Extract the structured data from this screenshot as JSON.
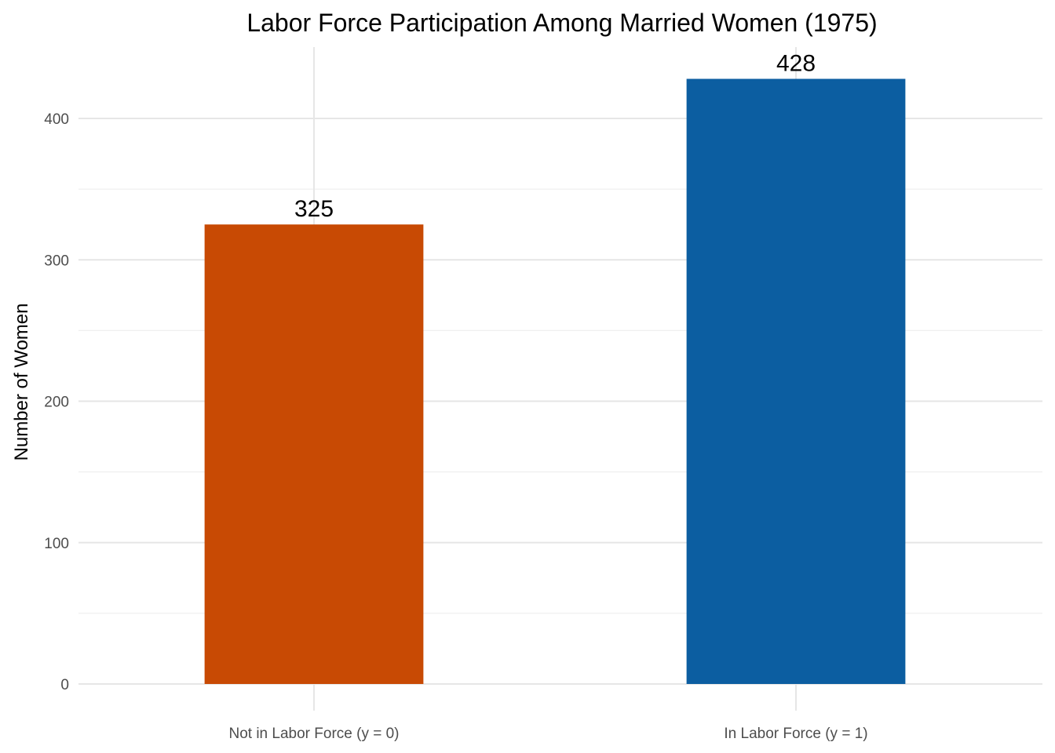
{
  "chart_data": {
    "type": "bar",
    "title": "Labor Force Participation Among Married Women (1975)",
    "xlabel": "",
    "ylabel": "Number of Women",
    "categories": [
      "Not in Labor Force (y = 0)",
      "In Labor Force (y = 1)"
    ],
    "values": [
      325,
      428
    ],
    "bar_colors": [
      "#c84a04",
      "#0c5ea1"
    ],
    "ylim": [
      0,
      450
    ],
    "y_ticks": [
      0,
      100,
      200,
      300,
      400
    ],
    "y_tick_labels": [
      "0",
      "100",
      "200",
      "300",
      "400"
    ],
    "grid": true,
    "legend": "none"
  }
}
